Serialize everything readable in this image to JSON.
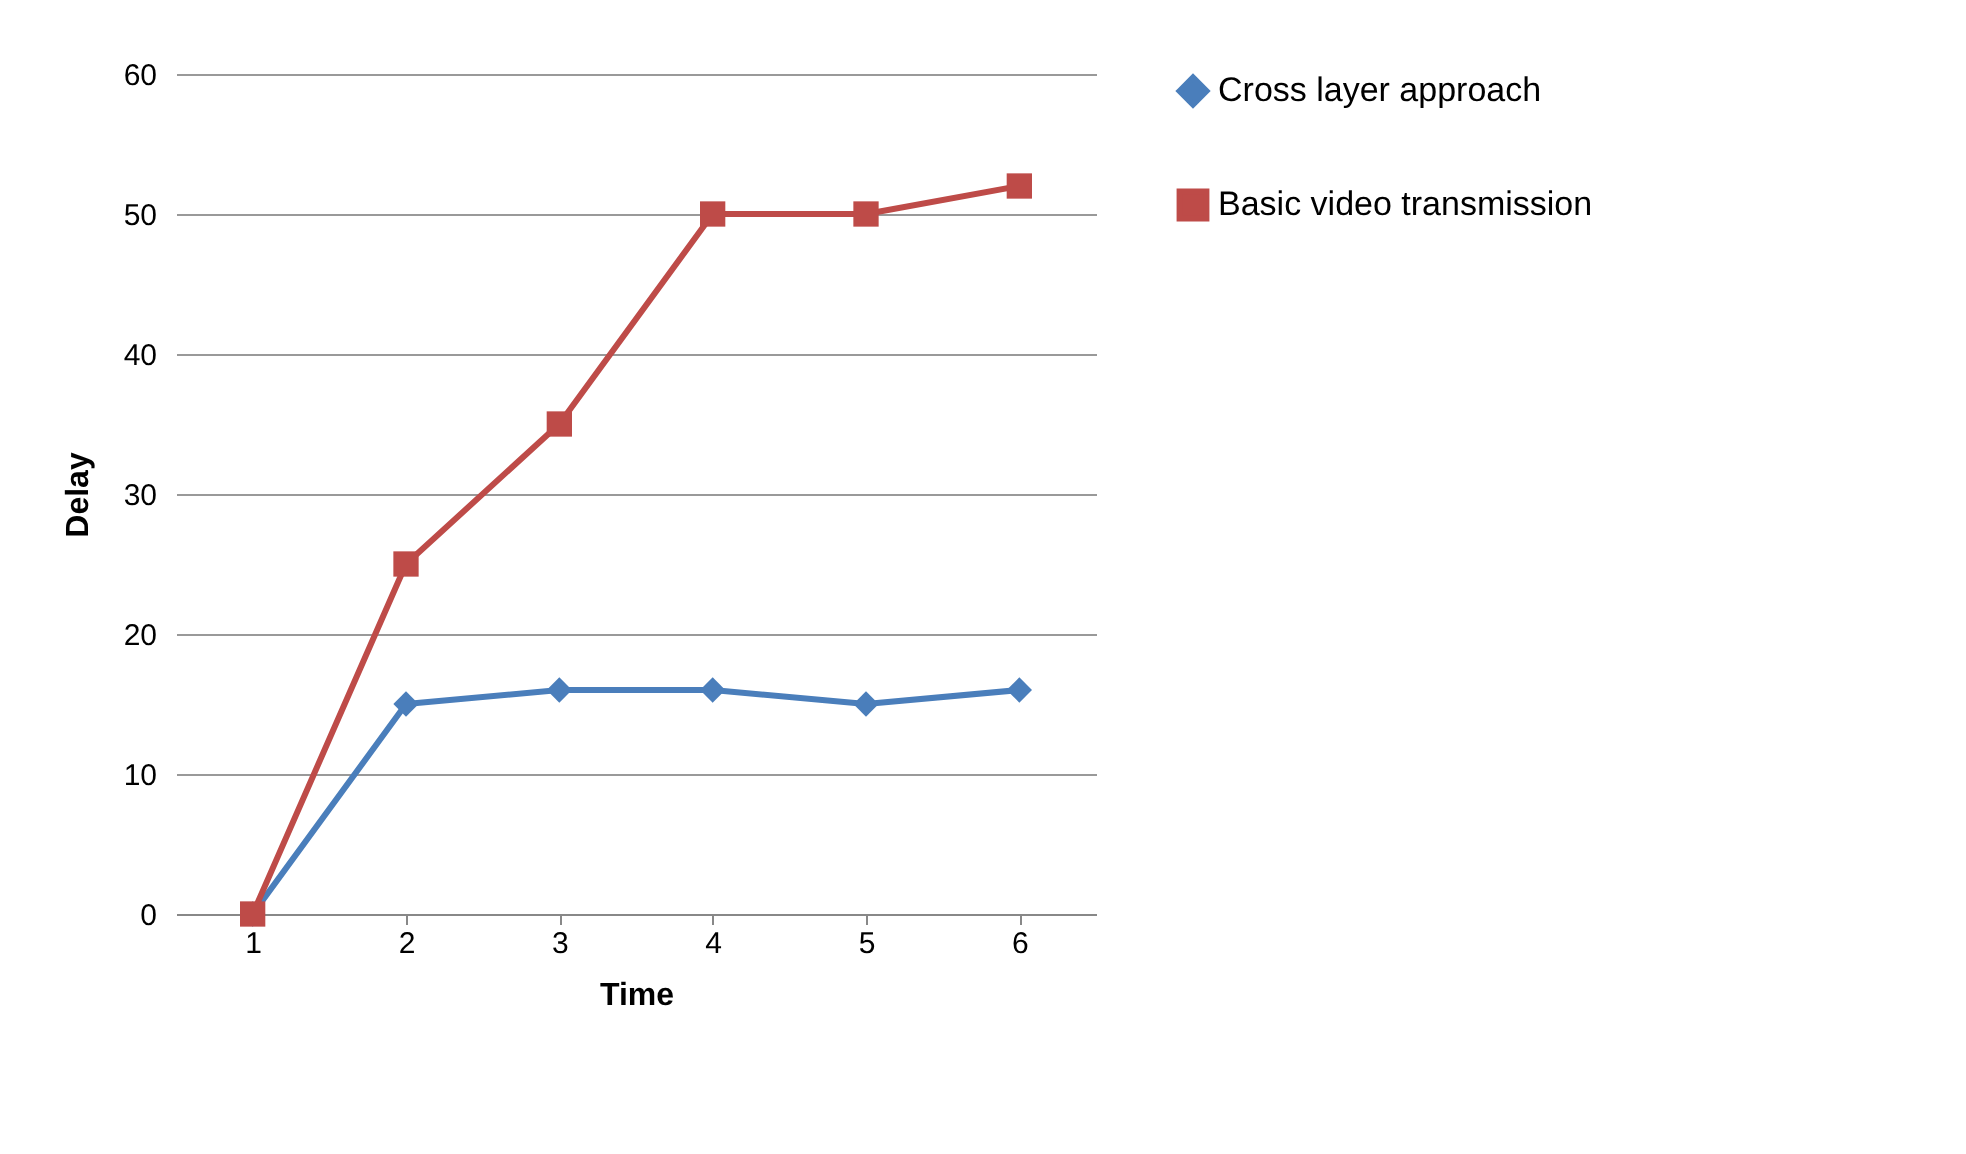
{
  "chart_data": {
    "type": "line",
    "xlabel": "Time",
    "ylabel": "Delay",
    "categories": [
      "1",
      "2",
      "3",
      "4",
      "5",
      "6"
    ],
    "series": [
      {
        "name": "Cross layer approach",
        "color": "#4a7ebb",
        "marker": "diamond",
        "values": [
          0,
          15,
          16,
          16,
          15,
          16
        ]
      },
      {
        "name": "Basic video transmission",
        "color": "#be4b48",
        "marker": "square",
        "values": [
          0,
          25,
          35,
          50,
          50,
          52
        ]
      }
    ],
    "ylim": [
      0,
      60
    ],
    "yticks": [
      0,
      10,
      20,
      30,
      40,
      50,
      60
    ],
    "grid": "y",
    "legend": "right",
    "line_style": "solid"
  }
}
